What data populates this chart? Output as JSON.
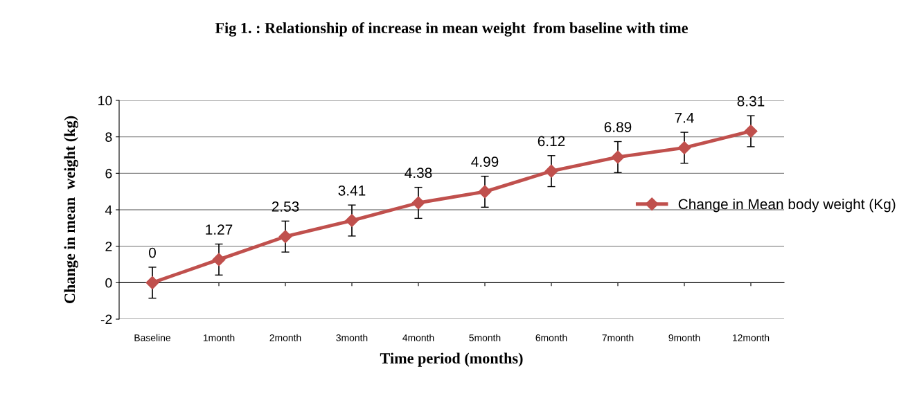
{
  "chart_data": {
    "type": "line",
    "title": "Fig 1. : Relationship of increase in mean weight  from baseline with time",
    "xlabel": "Time period (months)",
    "ylabel": "Change in mean  weight (kg)",
    "categories": [
      "Baseline",
      "1month",
      "2month",
      "3month",
      "4month",
      "5month",
      "6month",
      "7month",
      "9month",
      "12month"
    ],
    "series": [
      {
        "name": "Change in Mean body weight (Kg)",
        "color": "#c0504d",
        "values": [
          0,
          1.27,
          2.53,
          3.41,
          4.38,
          4.99,
          6.12,
          6.89,
          7.4,
          8.31
        ],
        "errors": [
          0.85,
          0.85,
          0.85,
          0.85,
          0.85,
          0.85,
          0.85,
          0.85,
          0.85,
          0.85
        ]
      }
    ],
    "ylim": [
      -2,
      10
    ],
    "yticks": [
      {
        "value": -2,
        "label": "-2"
      },
      0,
      2,
      4,
      6,
      8,
      10
    ],
    "grid": "y",
    "legend": "right",
    "marker": "diamond",
    "line_style": "solid",
    "data_labels": true
  }
}
